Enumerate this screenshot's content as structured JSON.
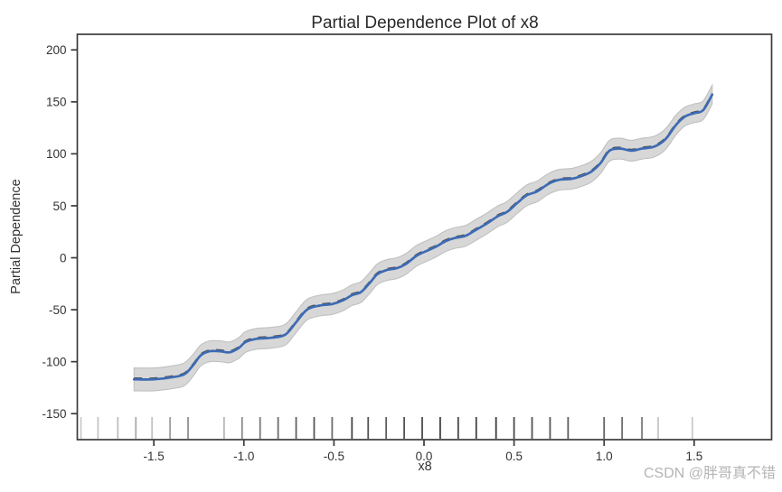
{
  "watermark": {
    "text": "CSDN @胖哥真不错",
    "color": "#b5b5b5"
  },
  "colors": {
    "line_blue": "#3d6bb3",
    "line_dashed_dark": "#4f4f4f",
    "band_fill": "#d7d7d7",
    "band_edge": "#c0c0c0",
    "spine": "#3b3b3b",
    "tick_label": "#333333",
    "title": "#2a2a2a",
    "background": "#ffffff"
  },
  "chart_data": {
    "type": "line",
    "title": "Partial Dependence Plot of x8",
    "xlabel": "x8",
    "ylabel": "Partial Dependence",
    "grid": false,
    "legend_position": "none",
    "xlim": [
      -1.925,
      1.93
    ],
    "ylim": [
      -175,
      215
    ],
    "xticks": [
      -1.5,
      -1.0,
      -0.5,
      0.0,
      0.5,
      1.0,
      1.5
    ],
    "xtick_labels": [
      "-1.5",
      "-1.0",
      "-0.5",
      "0.0",
      "0.5",
      "1.0",
      "1.5"
    ],
    "yticks": [
      200,
      150,
      100,
      50,
      0,
      -50,
      -100,
      -150
    ],
    "ytick_labels": [
      "200",
      "150",
      "100",
      "50",
      "0",
      "-50",
      "-100",
      "-150"
    ],
    "series": [
      {
        "name": "partial-dependence-line",
        "style": "solid-blue-over-dashed-dark",
        "x": [
          -1.61,
          -1.5,
          -1.4,
          -1.33,
          -1.28,
          -1.24,
          -1.19,
          -1.13,
          -1.08,
          -1.03,
          -0.99,
          -0.93,
          -0.85,
          -0.77,
          -0.71,
          -0.65,
          -0.58,
          -0.51,
          -0.45,
          -0.4,
          -0.35,
          -0.3,
          -0.26,
          -0.21,
          -0.15,
          -0.1,
          -0.04,
          0.02,
          0.07,
          0.12,
          0.17,
          0.23,
          0.29,
          0.35,
          0.41,
          0.46,
          0.52,
          0.57,
          0.63,
          0.69,
          0.75,
          0.82,
          0.88,
          0.93,
          0.98,
          1.03,
          1.09,
          1.15,
          1.21,
          1.28,
          1.34,
          1.4,
          1.45,
          1.5,
          1.55,
          1.6
        ],
        "y": [
          -117,
          -117,
          -115,
          -112,
          -103,
          -94,
          -90,
          -90,
          -91,
          -87,
          -81,
          -78,
          -77,
          -74,
          -62,
          -50,
          -46,
          -44.5,
          -41,
          -36,
          -33,
          -24,
          -16,
          -12,
          -10,
          -6,
          2,
          7,
          11,
          16,
          19,
          21,
          27,
          33,
          40,
          44,
          53,
          60,
          64,
          71,
          75,
          76,
          79,
          83,
          91,
          103,
          105,
          103,
          105,
          107,
          114,
          128,
          136,
          139,
          142,
          157
        ]
      }
    ],
    "confidence_band": {
      "around_series": "partial-dependence-line",
      "halfwidths": [
        11,
        11,
        11,
        11,
        10.5,
        10,
        10,
        10,
        10,
        10,
        10,
        10,
        10,
        10,
        10,
        10,
        10,
        10,
        10,
        10,
        10,
        10,
        10,
        10,
        10,
        10,
        10,
        10,
        10,
        10,
        10,
        10,
        10,
        10,
        10,
        10,
        10,
        10,
        10,
        10,
        10,
        10,
        10,
        10,
        10,
        10,
        10,
        10,
        10,
        10,
        10,
        9.5,
        9,
        9,
        9,
        9
      ]
    },
    "rug": {
      "x": [
        -1.905,
        -1.81,
        -1.7,
        -1.6,
        -1.51,
        -1.41,
        -1.31,
        -1.11,
        -1.01,
        -0.91,
        -0.81,
        -0.71,
        -0.61,
        -0.51,
        -0.4,
        -0.31,
        -0.21,
        -0.11,
        -0.01,
        0.09,
        0.19,
        0.29,
        0.4,
        0.5,
        0.6,
        0.7,
        0.8,
        1.0,
        1.1,
        1.21,
        1.3,
        1.49
      ],
      "colors": [
        "#cbcbcb",
        "#c6c6c6",
        "#bfbfbf",
        "#ababab",
        "#c2c2c2",
        "#a0a0a0",
        "#919191",
        "#b7b7b7",
        "#8c8c8c",
        "#7a7a7a",
        "#6d6d6d",
        "#626262",
        "#575757",
        "#6d6d6d",
        "#474747",
        "#535353",
        "#5c5c5c",
        "#535353",
        "#4a4a4a",
        "#424242",
        "#4a4a4a",
        "#424242",
        "#3e3e3e",
        "#4a4a4a",
        "#535353",
        "#575757",
        "#5c5c5c",
        "#626262",
        "#6d6d6d",
        "#7a7a7a",
        "#c6c6c6",
        "#cbcbcb"
      ]
    }
  }
}
